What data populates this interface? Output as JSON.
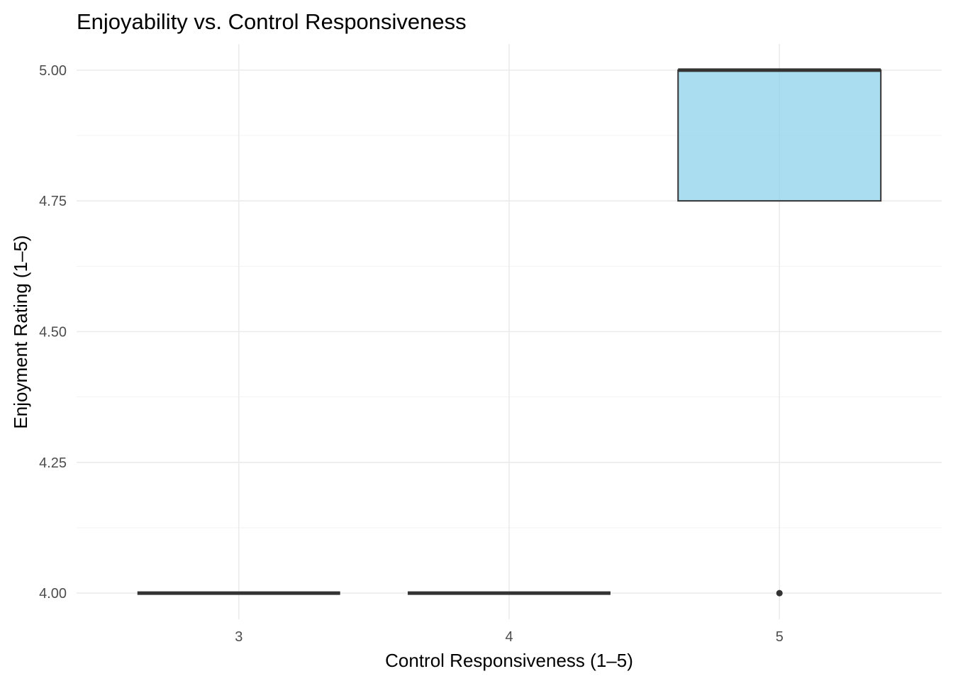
{
  "chart_data": {
    "type": "boxplot",
    "title": "Enjoyability vs. Control Responsiveness",
    "xlabel": "Control Responsiveness (1–5)",
    "ylabel": "Enjoyment Rating (1–5)",
    "categories": [
      "3",
      "4",
      "5"
    ],
    "ylim": [
      3.95,
      5.05
    ],
    "yticks": [
      4.0,
      4.25,
      4.5,
      4.75,
      5.0
    ],
    "ytick_labels": [
      "4.00",
      "4.25",
      "4.50",
      "4.75",
      "5.00"
    ],
    "boxes": [
      {
        "category": "3",
        "min": 4.0,
        "q1": 4.0,
        "median": 4.0,
        "q3": 4.0,
        "max": 4.0,
        "outliers": []
      },
      {
        "category": "4",
        "min": 4.0,
        "q1": 4.0,
        "median": 4.0,
        "q3": 4.0,
        "max": 4.0,
        "outliers": []
      },
      {
        "category": "5",
        "min": 4.75,
        "q1": 4.75,
        "median": 5.0,
        "q3": 5.0,
        "max": 5.0,
        "outliers": [
          4.0
        ]
      }
    ],
    "grid": true,
    "legend": "none",
    "colors": {
      "box_fill": "#87ceeb",
      "box_line": "#333333",
      "grid": "#ebebeb"
    }
  }
}
